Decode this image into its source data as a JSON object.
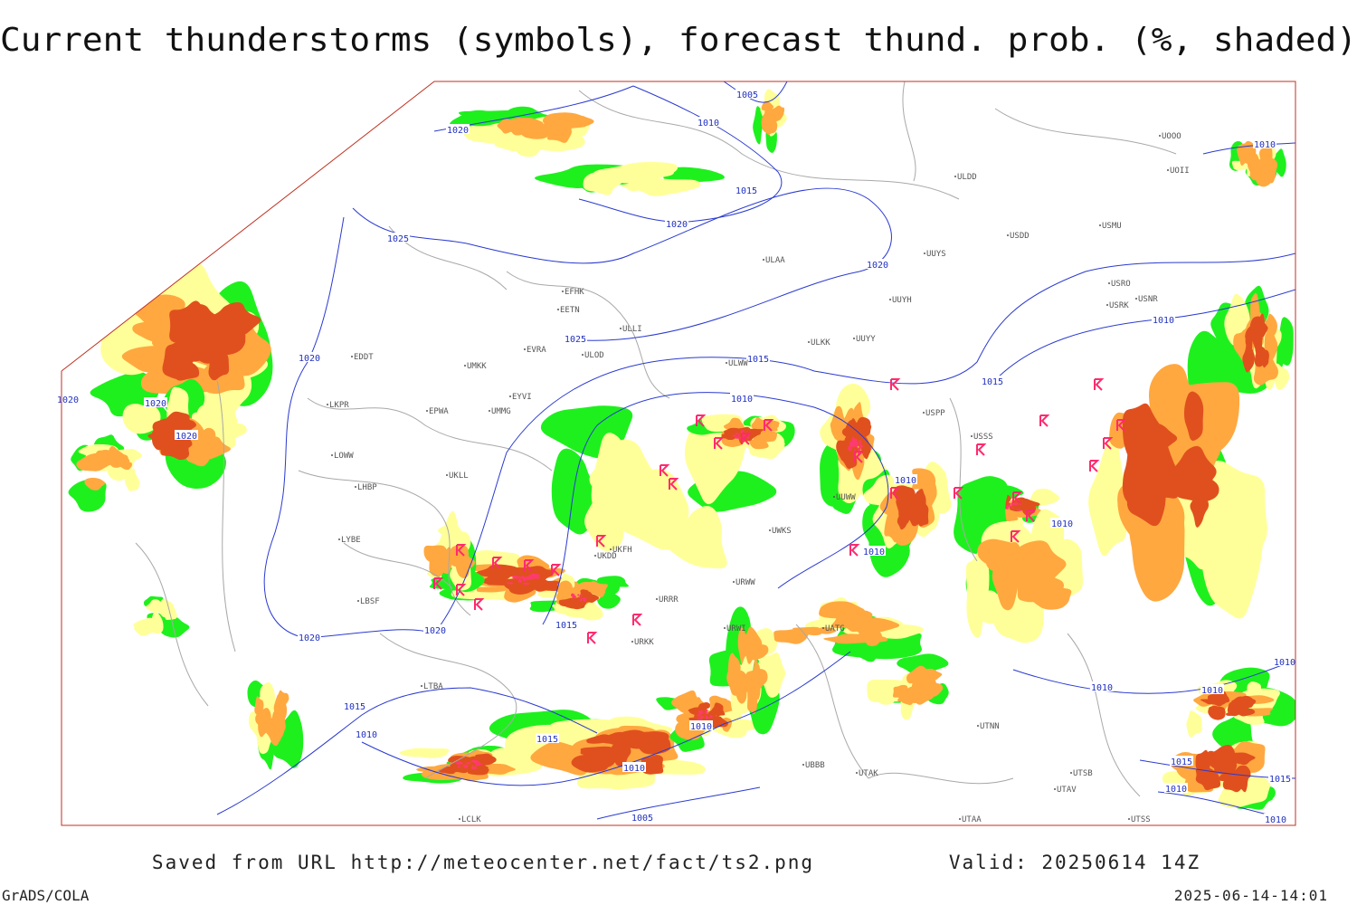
{
  "title": "Current thunderstorms (symbols), forecast thund. prob. (%, shaded)",
  "footer": {
    "saved": "Saved from URL http://meteocenter.net/fact/ts2.png",
    "valid": "Valid: 20250614 14Z",
    "software": "GrADS/COLA",
    "timestamp": "2025-06-14-14:01"
  },
  "isobar_labels": [
    1005,
    1010,
    1020,
    1015,
    1020,
    1025,
    1020,
    1025,
    1015,
    1020,
    1010,
    1020,
    1020,
    1020,
    1010,
    1010,
    1010,
    1015,
    1010,
    1010,
    1015,
    1020,
    1020,
    1015,
    1010,
    1015,
    1010,
    1010,
    1005,
    1010,
    1010,
    1010,
    1015,
    1010,
    1015,
    1010
  ],
  "stations": [
    "ULDD",
    "USDD",
    "USMU",
    "ULAA",
    "UUYS",
    "USRO",
    "USRK",
    "USNR",
    "UUYH",
    "ULKK",
    "UUYY",
    "EFHK",
    "EETN",
    "ULLI",
    "EVRA",
    "ULOD",
    "UMKK",
    "EDDT",
    "EPWA",
    "UMMG",
    "EYVI",
    "UKLL",
    "LKPR",
    "LOWW",
    "LHBP",
    "LYBE",
    "LBSF",
    "UKFH",
    "UKDD",
    "URRR",
    "URKK",
    "UUWW",
    "UWKS",
    "URWW",
    "URWI",
    "UATG",
    "UBBB",
    "UTAK",
    "UTNN",
    "UTAA",
    "LTBA",
    "LCLK",
    "UTSB",
    "UTAV",
    "UTSS",
    "USSS",
    "ULWW",
    "USPP",
    "UOOO",
    "UOII"
  ]
}
